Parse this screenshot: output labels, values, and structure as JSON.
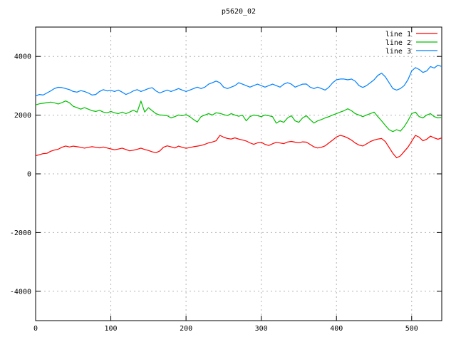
{
  "title": "p5620_02",
  "colors": {
    "background": "#ffffff",
    "border": "#000000",
    "grid": "#b4b4b4",
    "text": "#000000"
  },
  "chart_data": {
    "type": "line",
    "title": "p5620_02",
    "xlabel": "",
    "ylabel": "",
    "xlim": [
      0,
      540
    ],
    "ylim": [
      -5000,
      5000
    ],
    "x_ticks": [
      0,
      100,
      200,
      300,
      400,
      500
    ],
    "y_ticks": [
      -4000,
      -2000,
      0,
      2000,
      4000
    ],
    "grid": true,
    "legend_position": "top-right-inside",
    "x_start": 0,
    "x_step": 5,
    "series": [
      {
        "name": "line 1",
        "color": "#ff0000",
        "values": [
          620,
          650,
          690,
          700,
          770,
          810,
          840,
          905,
          950,
          915,
          945,
          925,
          905,
          875,
          905,
          925,
          905,
          885,
          915,
          880,
          850,
          820,
          845,
          875,
          830,
          785,
          805,
          835,
          875,
          830,
          795,
          750,
          720,
          780,
          905,
          955,
          920,
          880,
          945,
          905,
          870,
          895,
          925,
          945,
          965,
          1005,
          1055,
          1085,
          1125,
          1310,
          1250,
          1205,
          1185,
          1225,
          1185,
          1155,
          1120,
          1055,
          1005,
          1055,
          1075,
          1005,
          965,
          1025,
          1075,
          1050,
          1030,
          1085,
          1105,
          1080,
          1060,
          1090,
          1080,
          1000,
          920,
          880,
          905,
          955,
          1055,
          1150,
          1255,
          1310,
          1280,
          1220,
          1150,
          1050,
          980,
          950,
          1020,
          1100,
          1150,
          1185,
          1205,
          1100,
          900,
          700,
          545,
          610,
          760,
          905,
          1110,
          1310,
          1250,
          1125,
          1180,
          1285,
          1225,
          1180,
          1225
        ]
      },
      {
        "name": "line 2",
        "color": "#00c000",
        "values": [
          2350,
          2385,
          2405,
          2425,
          2445,
          2420,
          2380,
          2425,
          2485,
          2420,
          2300,
          2255,
          2205,
          2255,
          2205,
          2150,
          2125,
          2165,
          2105,
          2080,
          2125,
          2080,
          2050,
          2105,
          2050,
          2105,
          2170,
          2100,
          2480,
          2105,
          2255,
          2150,
          2050,
          2005,
          2000,
          1980,
          1905,
          1950,
          2005,
          1980,
          2020,
          1950,
          1850,
          1765,
          1950,
          2005,
          2050,
          2005,
          2080,
          2060,
          2020,
          1985,
          2050,
          2005,
          1960,
          2000,
          1805,
          1950,
          2005,
          1980,
          1950,
          2005,
          1980,
          1950,
          1725,
          1805,
          1755,
          1905,
          1980,
          1805,
          1755,
          1905,
          1980,
          1850,
          1730,
          1805,
          1850,
          1905,
          1950,
          2005,
          2050,
          2105,
          2150,
          2215,
          2150,
          2050,
          2005,
          1950,
          2005,
          2050,
          2105,
          1950,
          1805,
          1650,
          1505,
          1440,
          1505,
          1455,
          1605,
          1805,
          2050,
          2105,
          1950,
          1905,
          2005,
          2050,
          1950,
          1905,
          1925
        ]
      },
      {
        "name": "line 3",
        "color": "#0080ff",
        "values": [
          2650,
          2705,
          2685,
          2755,
          2825,
          2905,
          2950,
          2940,
          2905,
          2870,
          2805,
          2785,
          2835,
          2805,
          2755,
          2685,
          2705,
          2805,
          2870,
          2825,
          2845,
          2805,
          2855,
          2785,
          2705,
          2755,
          2825,
          2870,
          2805,
          2855,
          2905,
          2935,
          2825,
          2755,
          2805,
          2855,
          2805,
          2855,
          2905,
          2855,
          2805,
          2855,
          2905,
          2955,
          2905,
          2955,
          3055,
          3105,
          3160,
          3105,
          2955,
          2905,
          2955,
          3005,
          3105,
          3055,
          3005,
          2955,
          3005,
          3055,
          3005,
          2955,
          3005,
          3055,
          3005,
          2955,
          3055,
          3105,
          3055,
          2955,
          3005,
          3055,
          3060,
          2955,
          2905,
          2955,
          2905,
          2855,
          2955,
          3105,
          3205,
          3230,
          3230,
          3205,
          3230,
          3155,
          3005,
          2945,
          3005,
          3105,
          3205,
          3355,
          3430,
          3305,
          3105,
          2905,
          2855,
          2905,
          3005,
          3205,
          3505,
          3620,
          3555,
          3455,
          3505,
          3655,
          3605,
          3705,
          3655
        ]
      }
    ]
  }
}
